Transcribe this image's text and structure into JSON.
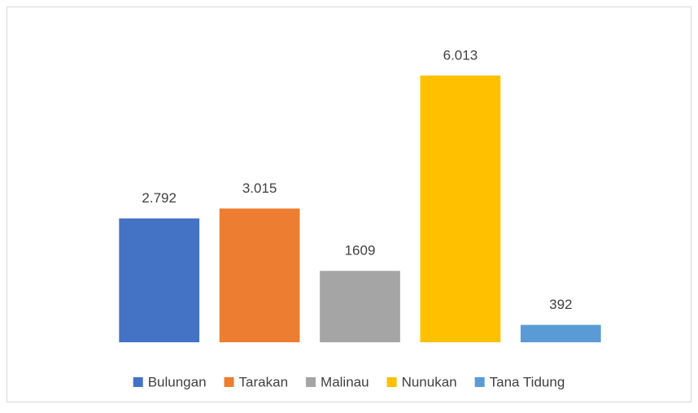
{
  "chart_data": {
    "type": "bar",
    "categories": [
      "Bulungan",
      "Tarakan",
      "Malinau",
      "Nunukan",
      "Tana Tidung"
    ],
    "values": [
      2792,
      3015,
      1609,
      6013,
      392
    ],
    "value_labels": [
      "2.792",
      "3.015",
      "1609",
      "6.013",
      "392"
    ],
    "colors": [
      "#4472c4",
      "#ed7d31",
      "#a5a5a5",
      "#ffc000",
      "#5b9bd5"
    ],
    "ylim": [
      0,
      7000
    ],
    "legend": "bottom"
  }
}
